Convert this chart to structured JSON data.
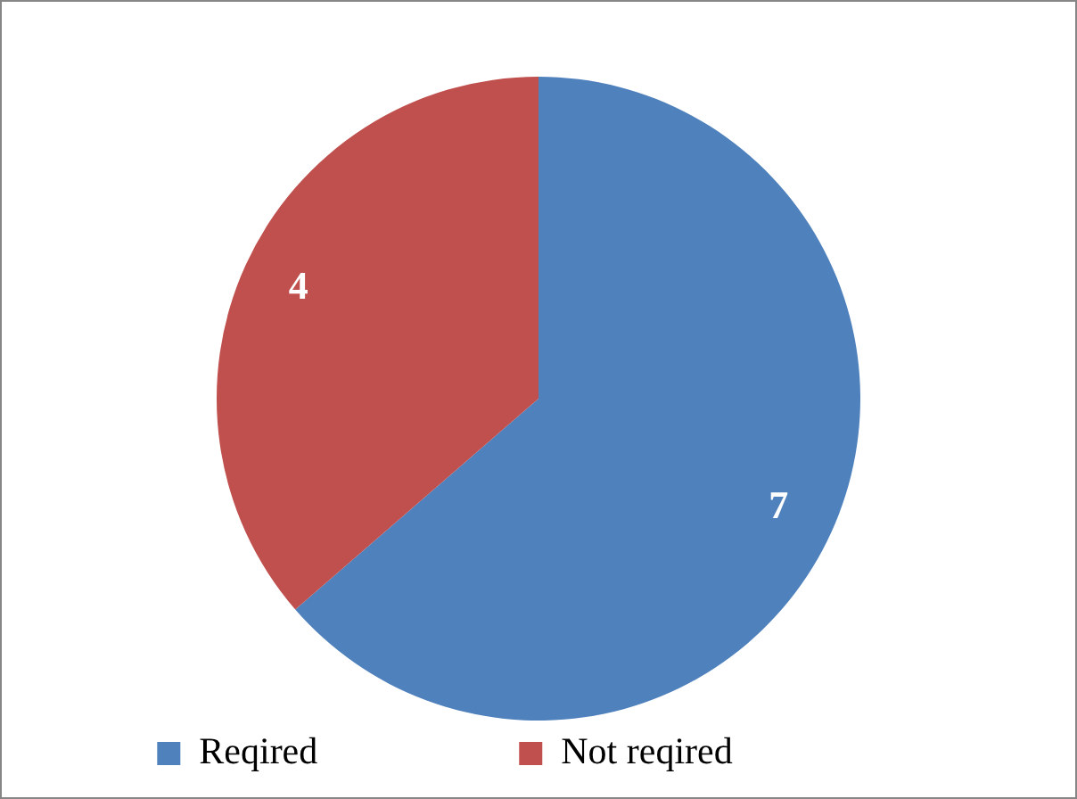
{
  "chart_data": {
    "type": "pie",
    "categories": [
      "Reqired",
      "Not reqired"
    ],
    "values": [
      7,
      4
    ],
    "colors": [
      "#4f81bd",
      "#c0504d"
    ],
    "data_labels": true,
    "legend": "bottom"
  }
}
